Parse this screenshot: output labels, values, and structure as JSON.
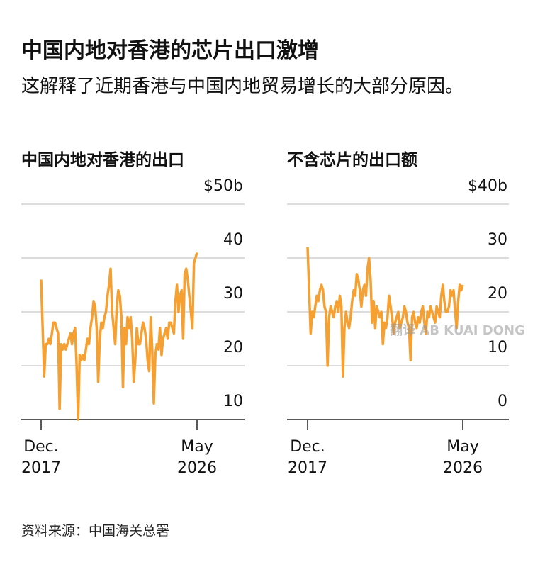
{
  "title": "中国内地对香港的芯片出口激增",
  "subtitle": "这解释了近期香港与中国内地贸易增长的大部分原因。",
  "source": "资料来源：中国海关总署",
  "watermark": "翻译 AB KUAI DONG",
  "chart_data": [
    {
      "type": "line",
      "title": "中国内地对香港的出口",
      "color": "#f6a032",
      "grid": true,
      "ylim": [
        10,
        50
      ],
      "yticks": [
        {
          "value": 50,
          "label": "$50b"
        },
        40,
        30,
        20,
        10
      ],
      "xticks": [
        {
          "value": "2017-12",
          "label": "Dec.\n2017"
        },
        {
          "value": "2026-05",
          "label": "May\n2026"
        }
      ],
      "x": [
        "2017-12",
        "2018-01",
        "2018-02",
        "2018-03",
        "2018-04",
        "2018-05",
        "2018-06",
        "2018-07",
        "2018-08",
        "2018-09",
        "2018-10",
        "2018-11",
        "2018-12",
        "2019-01",
        "2019-02",
        "2019-03",
        "2019-04",
        "2019-05",
        "2019-06",
        "2019-07",
        "2019-08",
        "2019-09",
        "2019-10",
        "2019-11",
        "2019-12",
        "2020-01",
        "2020-02",
        "2020-03",
        "2020-04",
        "2020-05",
        "2020-06",
        "2020-07",
        "2020-08",
        "2020-09",
        "2020-10",
        "2020-11",
        "2020-12",
        "2021-01",
        "2021-02",
        "2021-03",
        "2021-04",
        "2021-05",
        "2021-06",
        "2021-07",
        "2021-08",
        "2021-09",
        "2021-10",
        "2021-11",
        "2021-12",
        "2022-01",
        "2022-02",
        "2022-03",
        "2022-04",
        "2022-05",
        "2022-06",
        "2022-07",
        "2022-08",
        "2022-09",
        "2022-10",
        "2022-11",
        "2022-12",
        "2023-01",
        "2023-02",
        "2023-03",
        "2023-04",
        "2023-05",
        "2023-06",
        "2023-07",
        "2023-08",
        "2023-09",
        "2023-10",
        "2023-11",
        "2023-12",
        "2024-01",
        "2024-02",
        "2024-03",
        "2024-04",
        "2024-05",
        "2024-06",
        "2024-07",
        "2024-08",
        "2024-09",
        "2024-10",
        "2024-11",
        "2024-12",
        "2025-01",
        "2025-02",
        "2025-03",
        "2025-04",
        "2025-05",
        "2025-06",
        "2025-07",
        "2025-08",
        "2025-09",
        "2025-10",
        "2025-11",
        "2025-12",
        "2026-01",
        "2026-02",
        "2026-03",
        "2026-04",
        "2026-05"
      ],
      "values": [
        36,
        27,
        18,
        24,
        24,
        25,
        24,
        26,
        28,
        28,
        27,
        26,
        12,
        24,
        23,
        24,
        23,
        24,
        25,
        26,
        24,
        26,
        27,
        20,
        10,
        22,
        21,
        22,
        21,
        23,
        25,
        24,
        27,
        29,
        32,
        31,
        27,
        17,
        25,
        28,
        27,
        29,
        30,
        33,
        35,
        38,
        30,
        27,
        24,
        31,
        34,
        33,
        29,
        16,
        27,
        24,
        29,
        27,
        29,
        25,
        17,
        21,
        27,
        24,
        24,
        26,
        28,
        27,
        25,
        21,
        19,
        29,
        23,
        13,
        22,
        24,
        23,
        27,
        22,
        25,
        26,
        27,
        25,
        28,
        28,
        27,
        26,
        32,
        35,
        30,
        33,
        34,
        25,
        37,
        38,
        36,
        33,
        30,
        27,
        39,
        40,
        41
      ]
    },
    {
      "type": "line",
      "title": "不含芯片的出口额",
      "color": "#f6a032",
      "grid": true,
      "ylim": [
        0,
        40
      ],
      "yticks": [
        {
          "value": 40,
          "label": "$40b"
        },
        30,
        20,
        10,
        0
      ],
      "xticks": [
        {
          "value": "2017-12",
          "label": "Dec.\n2017"
        },
        {
          "value": "2026-05",
          "label": "May\n2026"
        }
      ],
      "x": [
        "2017-12",
        "2018-01",
        "2018-02",
        "2018-03",
        "2018-04",
        "2018-05",
        "2018-06",
        "2018-07",
        "2018-08",
        "2018-09",
        "2018-10",
        "2018-11",
        "2018-12",
        "2019-01",
        "2019-02",
        "2019-03",
        "2019-04",
        "2019-05",
        "2019-06",
        "2019-07",
        "2019-08",
        "2019-09",
        "2019-10",
        "2019-11",
        "2019-12",
        "2020-01",
        "2020-02",
        "2020-03",
        "2020-04",
        "2020-05",
        "2020-06",
        "2020-07",
        "2020-08",
        "2020-09",
        "2020-10",
        "2020-11",
        "2020-12",
        "2021-01",
        "2021-02",
        "2021-03",
        "2021-04",
        "2021-05",
        "2021-06",
        "2021-07",
        "2021-08",
        "2021-09",
        "2021-10",
        "2021-11",
        "2021-12",
        "2022-01",
        "2022-02",
        "2022-03",
        "2022-04",
        "2022-05",
        "2022-06",
        "2022-07",
        "2022-08",
        "2022-09",
        "2022-10",
        "2022-11",
        "2022-12",
        "2023-01",
        "2023-02",
        "2023-03",
        "2023-04",
        "2023-05",
        "2023-06",
        "2023-07",
        "2023-08",
        "2023-09",
        "2023-10",
        "2023-11",
        "2023-12",
        "2024-01",
        "2024-02",
        "2024-03",
        "2024-04",
        "2024-05",
        "2024-06",
        "2024-07",
        "2024-08",
        "2024-09",
        "2024-10",
        "2024-11",
        "2024-12",
        "2025-01",
        "2025-02",
        "2025-03",
        "2025-04",
        "2025-05",
        "2025-06",
        "2025-07",
        "2025-08",
        "2025-09",
        "2025-10",
        "2025-11",
        "2025-12",
        "2026-01",
        "2026-02",
        "2026-03",
        "2026-04",
        "2026-05"
      ],
      "values": [
        32,
        24,
        16,
        20,
        19,
        21,
        23,
        22,
        24,
        25,
        24,
        21,
        20,
        10,
        19,
        21,
        20,
        19,
        21,
        22,
        20,
        23,
        21,
        8,
        17,
        20,
        18,
        17,
        19,
        22,
        24,
        23,
        27,
        26,
        24,
        21,
        24,
        25,
        23,
        28,
        30,
        26,
        18,
        22,
        17,
        21,
        20,
        19,
        20,
        14,
        18,
        17,
        19,
        23,
        21,
        19,
        16,
        18,
        19,
        20,
        17,
        18,
        19,
        21,
        20,
        18,
        17,
        11,
        19,
        20,
        18,
        17,
        19,
        18,
        20,
        21,
        18,
        16,
        20,
        19,
        21,
        20,
        19,
        18,
        21,
        20,
        19,
        23,
        25,
        22,
        20,
        20,
        21,
        24,
        23,
        24,
        20,
        17,
        22,
        25,
        24,
        25
      ]
    }
  ]
}
